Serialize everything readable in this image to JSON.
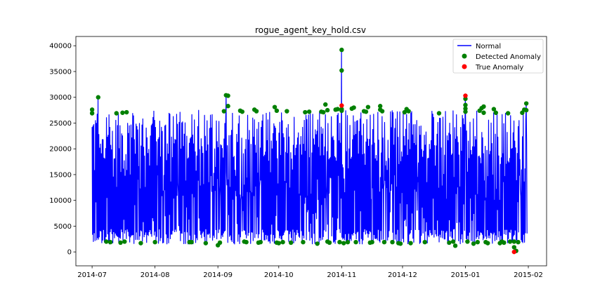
{
  "chart_data": {
    "type": "line",
    "title": "rogue_agent_key_hold.csv",
    "xlabel": "",
    "ylabel": "",
    "x_range": [
      "2014-06-23",
      "2015-02-10"
    ],
    "ylim": [
      -2700,
      41800
    ],
    "x_ticks": [
      "2014-07",
      "2014-08",
      "2014-09",
      "2014-10",
      "2014-11",
      "2014-12",
      "2015-01",
      "2015-02"
    ],
    "y_ticks": [
      0,
      5000,
      10000,
      15000,
      20000,
      25000,
      30000,
      35000,
      40000
    ],
    "y_tick_labels": [
      "0",
      "5000",
      "10000",
      "15000",
      "20000",
      "25000",
      "30000",
      "35000",
      "40000"
    ],
    "grid": false,
    "legend_placement": "top-right",
    "series": [
      {
        "name": "Normal",
        "kind": "line",
        "color": "#0000ff",
        "x_start": "2014-07-01",
        "x_end": "2015-01-31",
        "step_hours": 5,
        "pattern": "regular high-frequency oscillation between roughly 2000 and 26000",
        "low_range": [
          1500,
          4500
        ],
        "high_range": [
          18000,
          27500
        ],
        "spikes": [
          {
            "x": "2014-07-04",
            "y": 30000
          },
          {
            "x": "2014-09-05",
            "y": 30400
          },
          {
            "x": "2014-11-01",
            "y": 39200
          },
          {
            "x": "2015-01-01",
            "y": 30300
          },
          {
            "x": "2015-01-31",
            "y": 28800
          }
        ]
      },
      {
        "name": "Detected Anomaly",
        "kind": "scatter",
        "color": "#008000",
        "points": [
          {
            "x": "2014-07-01",
            "y": 27600
          },
          {
            "x": "2014-07-01",
            "y": 26900
          },
          {
            "x": "2014-07-04",
            "y": 30000
          },
          {
            "x": "2014-07-08",
            "y": 2000
          },
          {
            "x": "2014-07-10",
            "y": 1900
          },
          {
            "x": "2014-07-13",
            "y": 26900
          },
          {
            "x": "2014-07-15",
            "y": 1800
          },
          {
            "x": "2014-07-16",
            "y": 27000
          },
          {
            "x": "2014-07-17",
            "y": 2000
          },
          {
            "x": "2014-07-18",
            "y": 27100
          },
          {
            "x": "2014-07-25",
            "y": 1700
          },
          {
            "x": "2014-08-01",
            "y": 1900
          },
          {
            "x": "2014-08-18",
            "y": 1900
          },
          {
            "x": "2014-08-19",
            "y": 1900
          },
          {
            "x": "2014-08-26",
            "y": 1700
          },
          {
            "x": "2014-09-01",
            "y": 1300
          },
          {
            "x": "2014-09-02",
            "y": 1800
          },
          {
            "x": "2014-09-04",
            "y": 27300
          },
          {
            "x": "2014-09-05",
            "y": 30400
          },
          {
            "x": "2014-09-06",
            "y": 30300
          },
          {
            "x": "2014-09-06",
            "y": 28300
          },
          {
            "x": "2014-09-12",
            "y": 27400
          },
          {
            "x": "2014-09-13",
            "y": 27200
          },
          {
            "x": "2014-09-14",
            "y": 2000
          },
          {
            "x": "2014-09-15",
            "y": 1900
          },
          {
            "x": "2014-09-19",
            "y": 27600
          },
          {
            "x": "2014-09-20",
            "y": 27300
          },
          {
            "x": "2014-09-21",
            "y": 1800
          },
          {
            "x": "2014-09-22",
            "y": 1900
          },
          {
            "x": "2014-09-29",
            "y": 28100
          },
          {
            "x": "2014-09-30",
            "y": 27400
          },
          {
            "x": "2014-09-30",
            "y": 1800
          },
          {
            "x": "2014-10-01",
            "y": 1700
          },
          {
            "x": "2014-10-03",
            "y": 1900
          },
          {
            "x": "2014-10-05",
            "y": 27300
          },
          {
            "x": "2014-10-07",
            "y": 1800
          },
          {
            "x": "2014-10-13",
            "y": 1900
          },
          {
            "x": "2014-10-14",
            "y": 27100
          },
          {
            "x": "2014-10-16",
            "y": 27200
          },
          {
            "x": "2014-10-20",
            "y": 1600
          },
          {
            "x": "2014-10-22",
            "y": 27200
          },
          {
            "x": "2014-10-23",
            "y": 27100
          },
          {
            "x": "2014-10-24",
            "y": 28600
          },
          {
            "x": "2014-10-25",
            "y": 2000
          },
          {
            "x": "2014-10-25",
            "y": 27500
          },
          {
            "x": "2014-10-26",
            "y": 1800
          },
          {
            "x": "2014-10-29",
            "y": 27600
          },
          {
            "x": "2014-10-30",
            "y": 27700
          },
          {
            "x": "2014-10-31",
            "y": 1900
          },
          {
            "x": "2014-11-01",
            "y": 27400
          },
          {
            "x": "2014-11-01",
            "y": 27700
          },
          {
            "x": "2014-11-01",
            "y": 35200
          },
          {
            "x": "2014-11-01",
            "y": 39200
          },
          {
            "x": "2014-11-02",
            "y": 1700
          },
          {
            "x": "2014-11-04",
            "y": 1900
          },
          {
            "x": "2014-11-06",
            "y": 27800
          },
          {
            "x": "2014-11-07",
            "y": 28000
          },
          {
            "x": "2014-11-08",
            "y": 1900
          },
          {
            "x": "2014-11-12",
            "y": 27300
          },
          {
            "x": "2014-11-13",
            "y": 27200
          },
          {
            "x": "2014-11-14",
            "y": 28100
          },
          {
            "x": "2014-11-15",
            "y": 1800
          },
          {
            "x": "2014-11-16",
            "y": 1900
          },
          {
            "x": "2014-11-20",
            "y": 27600
          },
          {
            "x": "2014-11-20",
            "y": 28300
          },
          {
            "x": "2014-11-21",
            "y": 27300
          },
          {
            "x": "2014-11-22",
            "y": 1900
          },
          {
            "x": "2014-11-26",
            "y": 1900
          },
          {
            "x": "2014-11-29",
            "y": 1700
          },
          {
            "x": "2014-11-30",
            "y": 1600
          },
          {
            "x": "2014-12-02",
            "y": 27100
          },
          {
            "x": "2014-12-03",
            "y": 27700
          },
          {
            "x": "2014-12-04",
            "y": 27300
          },
          {
            "x": "2014-12-05",
            "y": 1700
          },
          {
            "x": "2014-12-12",
            "y": 1900
          },
          {
            "x": "2014-12-19",
            "y": 26900
          },
          {
            "x": "2014-12-24",
            "y": 1800
          },
          {
            "x": "2014-12-26",
            "y": 2000
          },
          {
            "x": "2014-12-27",
            "y": 1200
          },
          {
            "x": "2015-01-01",
            "y": 27200
          },
          {
            "x": "2015-01-01",
            "y": 27800
          },
          {
            "x": "2015-01-01",
            "y": 28500
          },
          {
            "x": "2015-01-01",
            "y": 29700
          },
          {
            "x": "2015-01-02",
            "y": 2000
          },
          {
            "x": "2015-01-05",
            "y": 1600
          },
          {
            "x": "2015-01-07",
            "y": 1900
          },
          {
            "x": "2015-01-08",
            "y": 27400
          },
          {
            "x": "2015-01-09",
            "y": 27900
          },
          {
            "x": "2015-01-10",
            "y": 28200
          },
          {
            "x": "2015-01-10",
            "y": 27000
          },
          {
            "x": "2015-01-11",
            "y": 1900
          },
          {
            "x": "2015-01-12",
            "y": 1700
          },
          {
            "x": "2015-01-15",
            "y": 27700
          },
          {
            "x": "2015-01-16",
            "y": 27000
          },
          {
            "x": "2015-01-18",
            "y": 1700
          },
          {
            "x": "2015-01-19",
            "y": 2000
          },
          {
            "x": "2015-01-20",
            "y": 1800
          },
          {
            "x": "2015-01-22",
            "y": 26900
          },
          {
            "x": "2015-01-23",
            "y": 2000
          },
          {
            "x": "2015-01-25",
            "y": 900
          },
          {
            "x": "2015-01-25",
            "y": 2000
          },
          {
            "x": "2015-01-26",
            "y": 200
          },
          {
            "x": "2015-01-27",
            "y": 1900
          },
          {
            "x": "2015-01-29",
            "y": 27000
          },
          {
            "x": "2015-01-30",
            "y": 27600
          },
          {
            "x": "2015-01-31",
            "y": 28800
          },
          {
            "x": "2015-01-31",
            "y": 27500
          }
        ]
      },
      {
        "name": "True Anomaly",
        "kind": "scatter",
        "color": "#ff0000",
        "points": [
          {
            "x": "2014-11-01",
            "y": 28400
          },
          {
            "x": "2015-01-01",
            "y": 30300
          },
          {
            "x": "2015-01-25",
            "y": 0
          }
        ]
      }
    ]
  }
}
